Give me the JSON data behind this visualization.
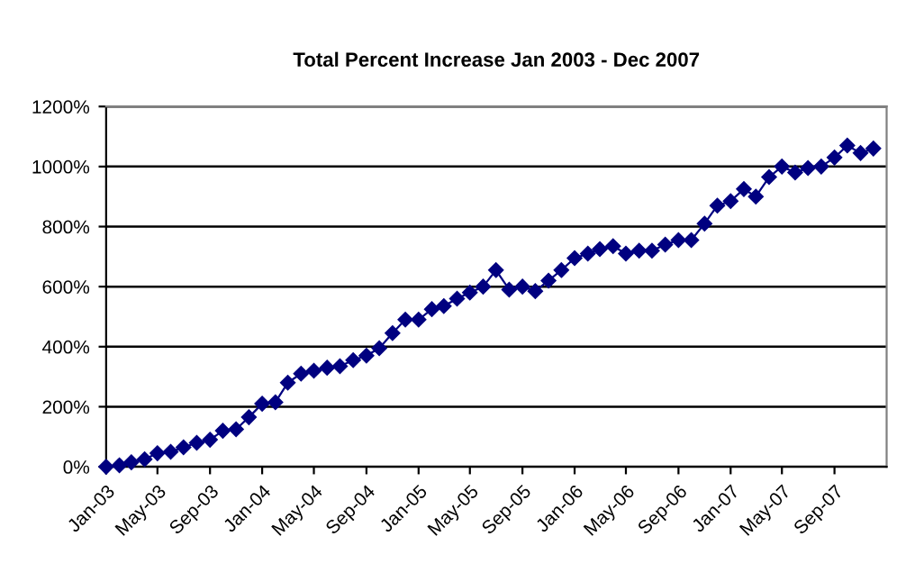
{
  "chart_data": {
    "type": "line",
    "title": "Total Percent Increase Jan 2003 - Dec 2007",
    "x": [
      "2003-01",
      "2003-02",
      "2003-03",
      "2003-04",
      "2003-05",
      "2003-06",
      "2003-07",
      "2003-08",
      "2003-09",
      "2003-10",
      "2003-11",
      "2003-12",
      "2004-01",
      "2004-02",
      "2004-03",
      "2004-04",
      "2004-05",
      "2004-06",
      "2004-07",
      "2004-08",
      "2004-09",
      "2004-10",
      "2004-11",
      "2004-12",
      "2005-01",
      "2005-02",
      "2005-03",
      "2005-04",
      "2005-05",
      "2005-06",
      "2005-07",
      "2005-08",
      "2005-09",
      "2005-10",
      "2005-11",
      "2005-12",
      "2006-01",
      "2006-02",
      "2006-03",
      "2006-04",
      "2006-05",
      "2006-06",
      "2006-07",
      "2006-08",
      "2006-09",
      "2006-10",
      "2006-11",
      "2006-12",
      "2007-01",
      "2007-02",
      "2007-03",
      "2007-04",
      "2007-05",
      "2007-06",
      "2007-07",
      "2007-08",
      "2007-09",
      "2007-10",
      "2007-11",
      "2007-12"
    ],
    "series": [
      {
        "color": "#000080",
        "values": [
          0,
          5,
          15,
          25,
          45,
          50,
          65,
          80,
          90,
          120,
          125,
          165,
          210,
          215,
          280,
          310,
          320,
          330,
          335,
          355,
          370,
          395,
          445,
          490,
          490,
          525,
          535,
          560,
          580,
          600,
          655,
          590,
          600,
          585,
          620,
          655,
          695,
          710,
          725,
          735,
          710,
          720,
          720,
          740,
          755,
          755,
          810,
          870,
          885,
          925,
          900,
          965,
          1000,
          980,
          995,
          1000,
          1030,
          1070,
          1045,
          1060
        ]
      }
    ],
    "xlim": [
      "2003-01",
      "2008-01"
    ],
    "xticks": [
      {
        "value": "2003-01",
        "label": "Jan-03"
      },
      {
        "value": "2003-05",
        "label": "May-03"
      },
      {
        "value": "2003-09",
        "label": "Sep-03"
      },
      {
        "value": "2004-01",
        "label": "Jan-04"
      },
      {
        "value": "2004-05",
        "label": "May-04"
      },
      {
        "value": "2004-09",
        "label": "Sep-04"
      },
      {
        "value": "2005-01",
        "label": "Jan-05"
      },
      {
        "value": "2005-05",
        "label": "May-05"
      },
      {
        "value": "2005-09",
        "label": "Sep-05"
      },
      {
        "value": "2006-01",
        "label": "Jan-06"
      },
      {
        "value": "2006-05",
        "label": "May-06"
      },
      {
        "value": "2006-09",
        "label": "Sep-06"
      },
      {
        "value": "2007-01",
        "label": "Jan-07"
      },
      {
        "value": "2007-05",
        "label": "May-07"
      },
      {
        "value": "2007-09",
        "label": "Sep-07"
      }
    ],
    "ylim": [
      0,
      1200
    ],
    "yticks": [
      {
        "value": 0,
        "label": "0%"
      },
      {
        "value": 200,
        "label": "200%"
      },
      {
        "value": 400,
        "label": "400%"
      },
      {
        "value": 600,
        "label": "600%"
      },
      {
        "value": 800,
        "label": "800%"
      },
      {
        "value": 1000,
        "label": "1000%"
      },
      {
        "value": 1200,
        "label": "1200%"
      }
    ],
    "grid": "y",
    "marker": "diamond",
    "line_style": "solid"
  }
}
